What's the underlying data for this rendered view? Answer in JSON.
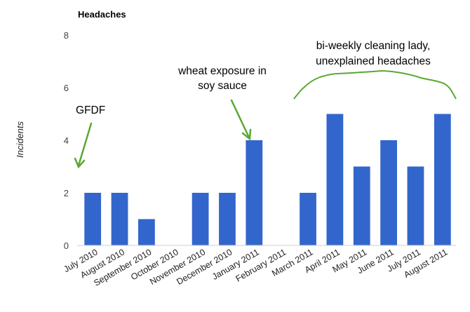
{
  "chart_data": {
    "type": "bar",
    "title": "Headaches",
    "ylabel": "Incidents",
    "xlabel": "",
    "ylim": [
      0,
      8
    ],
    "yticks": [
      0,
      2,
      4,
      6,
      8
    ],
    "grid": false,
    "bar_color": "#3366cc",
    "annotation_color": "#5aa832",
    "categories": [
      "July 2010",
      "August 2010",
      "September 2010",
      "October 2010",
      "November 2010",
      "December 2010",
      "January 2011",
      "February 2011",
      "March 2011",
      "April 2011",
      "May 2011",
      "June 2011",
      "July 2011",
      "August 2011"
    ],
    "values": [
      2,
      2,
      1,
      0,
      2,
      2,
      4,
      0,
      2,
      5,
      3,
      4,
      3,
      5
    ],
    "annotations": {
      "gfdf": "GFDF",
      "wheat_line1": "wheat exposure in",
      "wheat_line2": "soy sauce",
      "cleaning_line1": "bi-weekly cleaning lady,",
      "cleaning_line2": "unexplained headaches"
    }
  }
}
